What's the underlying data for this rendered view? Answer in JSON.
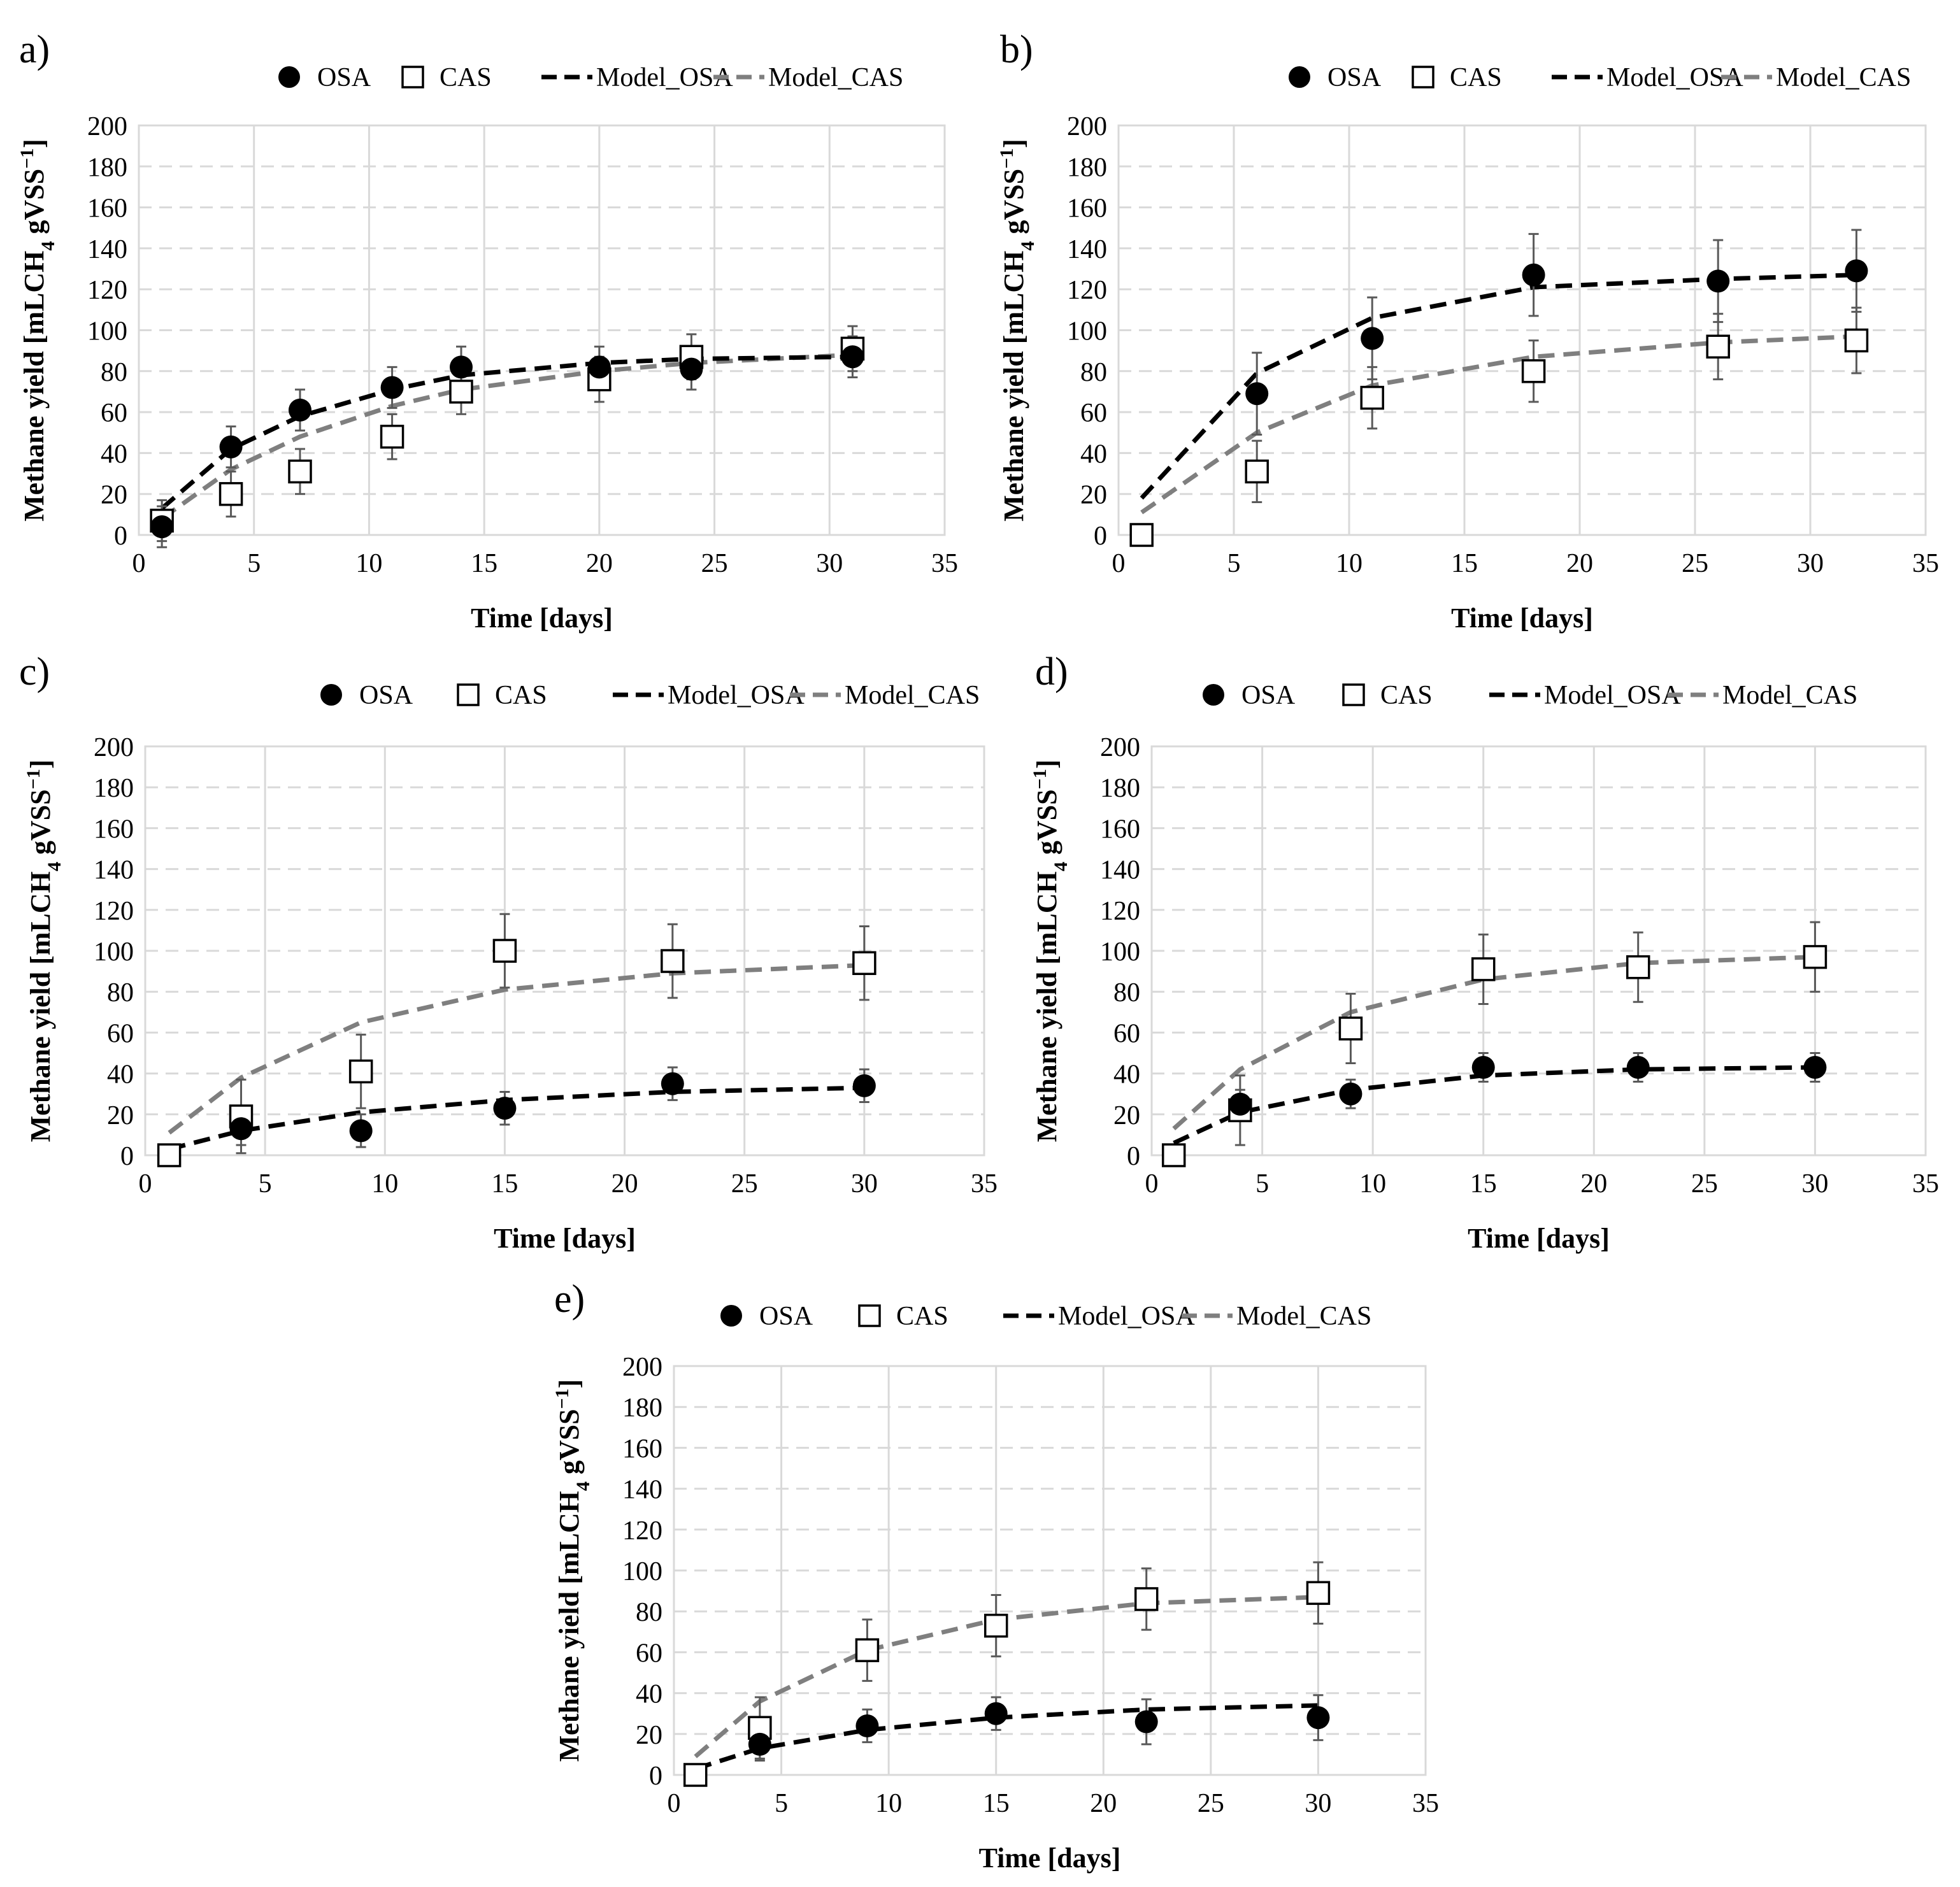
{
  "legend": {
    "osa": "OSA",
    "cas": "CAS",
    "model_osa": "Model_OSA",
    "model_cas": "Model_CAS"
  },
  "colors": {
    "osa": "#000000",
    "cas_fill": "#ffffff",
    "cas_edge": "#000000",
    "model_osa": "#000000",
    "model_cas": "#7f7f7f",
    "grid": "#d9d9d9",
    "error_bar": "#595959"
  },
  "chart_data": [
    {
      "panel": "a)",
      "type": "scatter",
      "xlabel": "Time [days]",
      "ylabel": "Methane yield [mLCH",
      "ylabel_sub": "4",
      "ylabel_tail": " gVSS",
      "ylabel_sup": "−1",
      "ylabel_end": "]",
      "xlim": [
        0,
        35
      ],
      "ylim": [
        0,
        200
      ],
      "xticks": [
        0,
        5,
        10,
        15,
        20,
        25,
        30,
        35
      ],
      "yticks": [
        0,
        20,
        40,
        60,
        80,
        100,
        120,
        140,
        160,
        180,
        200
      ],
      "legend_position": "top",
      "series": [
        {
          "name": "OSA",
          "x": [
            1,
            4,
            7,
            11,
            14,
            20,
            24,
            31
          ],
          "y": [
            4,
            43,
            61,
            72,
            82,
            82,
            81,
            87
          ],
          "err": [
            10,
            10,
            10,
            10,
            10,
            10,
            10,
            10
          ]
        },
        {
          "name": "CAS",
          "x": [
            1,
            4,
            7,
            11,
            14,
            20,
            24,
            31
          ],
          "y": [
            7,
            20,
            31,
            48,
            70,
            76,
            87,
            91
          ],
          "err": [
            10,
            11,
            11,
            11,
            11,
            11,
            11,
            11
          ]
        },
        {
          "name": "Model_OSA",
          "x": [
            1,
            4,
            7,
            11,
            14,
            20,
            24,
            31
          ],
          "y": [
            13,
            42,
            58,
            71,
            78,
            84,
            86,
            87
          ]
        },
        {
          "name": "Model_CAS",
          "x": [
            1,
            4,
            7,
            11,
            14,
            20,
            24,
            31
          ],
          "y": [
            8,
            32,
            48,
            63,
            71,
            80,
            84,
            88
          ]
        }
      ]
    },
    {
      "panel": "b)",
      "type": "scatter",
      "xlabel": "Time [days]",
      "ylabel": "Methane yield [mLCH",
      "ylabel_sub": "4",
      "ylabel_tail": " gVSS",
      "ylabel_sup": "−1",
      "ylabel_end": "]",
      "xlim": [
        0,
        35
      ],
      "ylim": [
        0,
        200
      ],
      "xticks": [
        0,
        5,
        10,
        15,
        20,
        25,
        30,
        35
      ],
      "yticks": [
        0,
        20,
        40,
        60,
        80,
        100,
        120,
        140,
        160,
        180,
        200
      ],
      "legend_position": "top",
      "series": [
        {
          "name": "OSA",
          "x": [
            6,
            11,
            18,
            26,
            32
          ],
          "y": [
            69,
            96,
            127,
            124,
            129
          ],
          "err": [
            20,
            20,
            20,
            20,
            20
          ]
        },
        {
          "name": "CAS",
          "x": [
            1,
            6,
            11,
            18,
            26,
            32
          ],
          "y": [
            0,
            31,
            67,
            80,
            92,
            95
          ],
          "err": [
            0,
            15,
            15,
            15,
            16,
            16
          ]
        },
        {
          "name": "Model_OSA",
          "x": [
            1,
            6,
            11,
            18,
            26,
            32
          ],
          "y": [
            18,
            79,
            106,
            121,
            125,
            127
          ]
        },
        {
          "name": "Model_CAS",
          "x": [
            1,
            6,
            11,
            18,
            26,
            32
          ],
          "y": [
            11,
            50,
            73,
            87,
            94,
            97
          ]
        }
      ]
    },
    {
      "panel": "c)",
      "type": "scatter",
      "xlabel": "Time [days]",
      "ylabel": "Methane yield [mLCH",
      "ylabel_sub": "4",
      "ylabel_tail": " gVSS",
      "ylabel_sup": "−1",
      "ylabel_end": "]",
      "xlim": [
        0,
        35
      ],
      "ylim": [
        0,
        200
      ],
      "xticks": [
        0,
        5,
        10,
        15,
        20,
        25,
        30,
        35
      ],
      "yticks": [
        0,
        20,
        40,
        60,
        80,
        100,
        120,
        140,
        160,
        180,
        200
      ],
      "legend_position": "top",
      "series": [
        {
          "name": "OSA",
          "x": [
            4,
            9,
            15,
            22,
            30
          ],
          "y": [
            13,
            12,
            23,
            35,
            34
          ],
          "err": [
            8,
            8,
            8,
            8,
            8
          ]
        },
        {
          "name": "CAS",
          "x": [
            1,
            4,
            9,
            15,
            22,
            30
          ],
          "y": [
            0,
            19,
            41,
            100,
            95,
            94
          ],
          "err": [
            0,
            18,
            18,
            18,
            18,
            18
          ]
        },
        {
          "name": "Model_OSA",
          "x": [
            1,
            4,
            9,
            15,
            22,
            30
          ],
          "y": [
            3,
            12,
            21,
            27,
            31,
            33
          ]
        },
        {
          "name": "Model_CAS",
          "x": [
            1,
            4,
            9,
            15,
            22,
            30
          ],
          "y": [
            11,
            38,
            65,
            81,
            89,
            93
          ]
        }
      ]
    },
    {
      "panel": "d)",
      "type": "scatter",
      "xlabel": "Time [days]",
      "ylabel": "Methane yield [mLCH",
      "ylabel_sub": "4",
      "ylabel_tail": " gVSS",
      "ylabel_sup": "−1",
      "ylabel_end": "]",
      "xlim": [
        0,
        35
      ],
      "ylim": [
        0,
        200
      ],
      "xticks": [
        0,
        5,
        10,
        15,
        20,
        25,
        30,
        35
      ],
      "yticks": [
        0,
        20,
        40,
        60,
        80,
        100,
        120,
        140,
        160,
        180,
        200
      ],
      "legend_position": "top",
      "series": [
        {
          "name": "OSA",
          "x": [
            4,
            9,
            15,
            22,
            30
          ],
          "y": [
            25,
            30,
            43,
            43,
            43
          ],
          "err": [
            7,
            7,
            7,
            7,
            7
          ]
        },
        {
          "name": "CAS",
          "x": [
            1,
            4,
            9,
            15,
            22,
            30
          ],
          "y": [
            0,
            22,
            62,
            91,
            92,
            97
          ],
          "err": [
            0,
            17,
            17,
            17,
            17,
            17
          ]
        },
        {
          "name": "Model_OSA",
          "x": [
            1,
            4,
            9,
            15,
            22,
            30
          ],
          "y": [
            6,
            21,
            32,
            39,
            42,
            43
          ]
        },
        {
          "name": "Model_CAS",
          "x": [
            1,
            4,
            9,
            15,
            22,
            30
          ],
          "y": [
            13,
            42,
            70,
            86,
            94,
            97
          ]
        }
      ]
    },
    {
      "panel": "e)",
      "type": "scatter",
      "xlabel": "Time [days]",
      "ylabel": "Methane yield [mLCH",
      "ylabel_sub": "4",
      "ylabel_tail": " gVSS",
      "ylabel_sup": "−1",
      "ylabel_end": "]",
      "xlim": [
        0,
        35
      ],
      "ylim": [
        0,
        200
      ],
      "xticks": [
        0,
        5,
        10,
        15,
        20,
        25,
        30,
        35
      ],
      "yticks": [
        0,
        20,
        40,
        60,
        80,
        100,
        120,
        140,
        160,
        180,
        200
      ],
      "legend_position": "top",
      "series": [
        {
          "name": "OSA",
          "x": [
            4,
            9,
            15,
            22,
            30
          ],
          "y": [
            15,
            24,
            30,
            26,
            28
          ],
          "err": [
            8,
            8,
            8,
            11,
            11
          ]
        },
        {
          "name": "CAS",
          "x": [
            1,
            4,
            9,
            15,
            22,
            30
          ],
          "y": [
            0,
            23,
            61,
            73,
            86,
            89
          ],
          "err": [
            0,
            15,
            15,
            15,
            15,
            15
          ]
        },
        {
          "name": "Model_OSA",
          "x": [
            1,
            4,
            9,
            15,
            22,
            30
          ],
          "y": [
            3,
            13,
            22,
            28,
            32,
            34
          ]
        },
        {
          "name": "Model_CAS",
          "x": [
            1,
            4,
            9,
            15,
            22,
            30
          ],
          "y": [
            9,
            36,
            61,
            76,
            84,
            87
          ]
        }
      ]
    }
  ]
}
